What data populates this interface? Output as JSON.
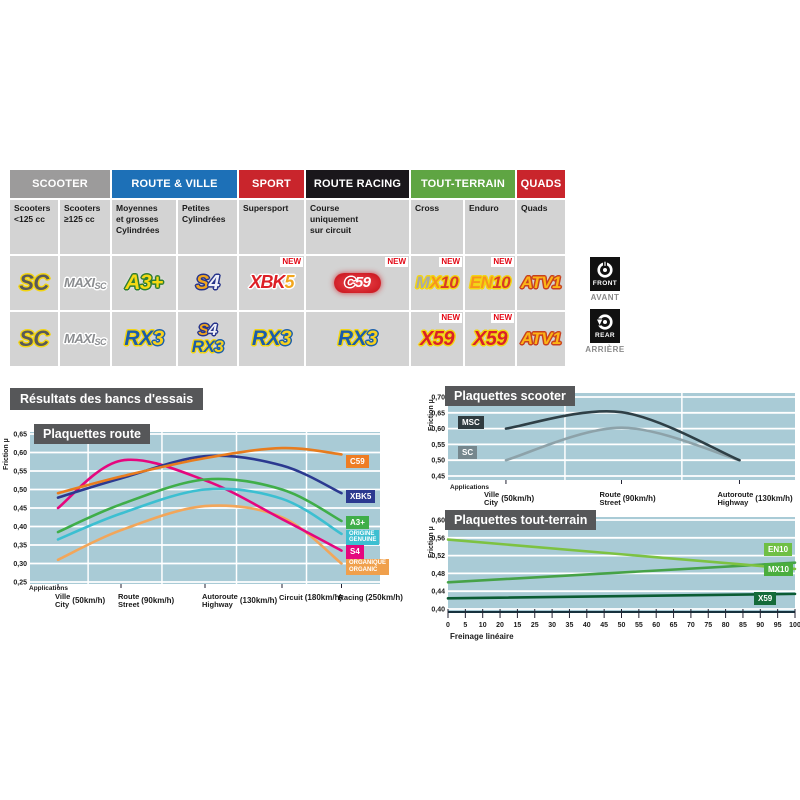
{
  "heading": "Résultats des bancs d'essais",
  "axle": {
    "front": {
      "label_en": "FRONT",
      "label_fr": "AVANT"
    },
    "rear": {
      "label_en": "REAR",
      "label_fr": "ARRIÈRE"
    }
  },
  "table": {
    "new_label": "NEW",
    "groups": [
      {
        "label": "SCOOTER",
        "color": "#9c9b9b",
        "span": 2
      },
      {
        "label": "ROUTE & VILLE",
        "color": "#1d70b7",
        "span": 2
      },
      {
        "label": "SPORT",
        "color": "#c9252c",
        "span": 1
      },
      {
        "label": "ROUTE RACING",
        "color": "#1a171b",
        "span": 1
      },
      {
        "label": "TOUT-TERRAIN",
        "color": "#5fa543",
        "span": 2
      },
      {
        "label": "QUADS",
        "color": "#c9252c",
        "span": 1
      }
    ],
    "columns": [
      {
        "lines": [
          "Scooters",
          "<125 cc"
        ]
      },
      {
        "lines": [
          "Scooters",
          "≥125 cc"
        ]
      },
      {
        "lines": [
          "Moyennes",
          "et grosses",
          "Cylindrées"
        ]
      },
      {
        "lines": [
          "Petites",
          "Cylindrées"
        ]
      },
      {
        "lines": [
          "Supersport"
        ]
      },
      {
        "lines": [
          "Course",
          "uniquement",
          "sur circuit"
        ]
      },
      {
        "lines": [
          "Cross"
        ]
      },
      {
        "lines": [
          "Enduro"
        ]
      },
      {
        "lines": [
          "Quads"
        ]
      }
    ],
    "rows": [
      {
        "side": "front",
        "cells": [
          {
            "badges": [
              {
                "name": "SC",
                "style": "sc",
                "parts": [
                  [
                    "SC",
                    "#58595b",
                    "y"
                  ]
                ]
              }
            ]
          },
          {
            "badges": [
              {
                "name": "MAXI-SC",
                "style": "maxi",
                "parts": [
                  [
                    "MAXI",
                    "#8b8d90",
                    "w"
                  ],
                  [
                    "SC",
                    "#8b8d90",
                    "w"
                  ]
                ]
              }
            ]
          },
          {
            "badges": [
              {
                "name": "A3+",
                "style": "a3",
                "parts": [
                  [
                    "A3+",
                    "#f5d913",
                    "g"
                  ]
                ]
              }
            ]
          },
          {
            "badges": [
              {
                "name": "S4",
                "style": "s4",
                "parts": [
                  [
                    "S",
                    "#f2a71d",
                    "n"
                  ],
                  [
                    "4",
                    "#eef0f8",
                    "n"
                  ]
                ]
              }
            ]
          },
          {
            "new": true,
            "badges": [
              {
                "name": "XBK5",
                "style": "xbk5",
                "parts": [
                  [
                    "XBK",
                    "#dd1f26",
                    "w"
                  ],
                  [
                    "5",
                    "#f2a71d",
                    "w"
                  ]
                ]
              }
            ]
          },
          {
            "new": true,
            "badges": [
              {
                "name": "C59",
                "style": "c59",
                "parts": [
                  [
                    "C",
                    "#cf1e26",
                    "w"
                  ],
                  [
                    "59",
                    "#ffffff",
                    ""
                  ]
                ]
              }
            ]
          },
          {
            "new": true,
            "badges": [
              {
                "name": "MX10",
                "style": "mx10",
                "parts": [
                  [
                    "M",
                    "#a7a9ac",
                    "y"
                  ],
                  [
                    "X",
                    "#f7941d",
                    "y"
                  ],
                  [
                    "10",
                    "#d93a26",
                    "y"
                  ]
                ]
              }
            ]
          },
          {
            "new": true,
            "badges": [
              {
                "name": "EN10",
                "style": "en10",
                "parts": [
                  [
                    "EN",
                    "#f7941d",
                    "y"
                  ],
                  [
                    "10",
                    "#d93a26",
                    "y"
                  ]
                ]
              }
            ]
          },
          {
            "badges": [
              {
                "name": "ATV1",
                "style": "atv1",
                "parts": [
                  [
                    "ATV1",
                    "#fcb415",
                    "o"
                  ]
                ]
              }
            ]
          }
        ]
      },
      {
        "side": "rear",
        "cells": [
          {
            "badges": [
              {
                "name": "SC",
                "style": "sc",
                "parts": [
                  [
                    "SC",
                    "#58595b",
                    "y"
                  ]
                ]
              }
            ]
          },
          {
            "badges": [
              {
                "name": "MAXI-SC",
                "style": "maxi",
                "parts": [
                  [
                    "MAXI",
                    "#8b8d90",
                    "w"
                  ],
                  [
                    "SC",
                    "#8b8d90",
                    "w"
                  ]
                ]
              }
            ]
          },
          {
            "badges": [
              {
                "name": "RX3",
                "style": "rx3",
                "parts": [
                  [
                    "RX",
                    "#1c5caa",
                    "y"
                  ],
                  [
                    "3",
                    "#f8d11e",
                    "b"
                  ]
                ]
              }
            ]
          },
          {
            "badges": [
              {
                "name": "S4",
                "style": "s4s",
                "parts": [
                  [
                    "S",
                    "#f2a71d",
                    "n"
                  ],
                  [
                    "4",
                    "#eef0f8",
                    "n"
                  ]
                ]
              },
              {
                "name": "RX3",
                "style": "rx3s",
                "parts": [
                  [
                    "RX",
                    "#1c5caa",
                    "y"
                  ],
                  [
                    "3",
                    "#f8d11e",
                    "b"
                  ]
                ]
              }
            ]
          },
          {
            "badges": [
              {
                "name": "RX3",
                "style": "rx3",
                "parts": [
                  [
                    "RX",
                    "#1c5caa",
                    "y"
                  ],
                  [
                    "3",
                    "#f8d11e",
                    "b"
                  ]
                ]
              }
            ]
          },
          {
            "badges": [
              {
                "name": "RX3",
                "style": "rx3",
                "parts": [
                  [
                    "RX",
                    "#1c5caa",
                    "y"
                  ],
                  [
                    "3",
                    "#f8d11e",
                    "b"
                  ]
                ]
              }
            ]
          },
          {
            "new": true,
            "badges": [
              {
                "name": "X59",
                "style": "x59",
                "parts": [
                  [
                    "X59",
                    "#da2128",
                    "y"
                  ]
                ]
              }
            ]
          },
          {
            "new": true,
            "badges": [
              {
                "name": "X59",
                "style": "x59",
                "parts": [
                  [
                    "X59",
                    "#da2128",
                    "y"
                  ]
                ]
              }
            ]
          },
          {
            "badges": [
              {
                "name": "ATV1",
                "style": "atv1",
                "parts": [
                  [
                    "ATV1",
                    "#fcb415",
                    "o"
                  ]
                ]
              }
            ]
          }
        ]
      }
    ]
  },
  "chart_data": [
    {
      "id": "route",
      "type": "line",
      "title": "Plaquettes route",
      "ylabel": "Friction µ",
      "caption": "Applications",
      "ylim": [
        0.25,
        0.65
      ],
      "ytick_step": 0.05,
      "plot_bg": "#a9cbd6",
      "x_categories": [
        {
          "fr": "Ville",
          "en": "City",
          "speed": "(50km/h)"
        },
        {
          "fr": "Route",
          "en": "Street",
          "speed": "(90km/h)"
        },
        {
          "fr": "Autoroute",
          "en": "Highway",
          "speed": "(130km/h)"
        },
        {
          "fr": "Circuit",
          "speed": "(180km/h)"
        },
        {
          "fr": "Racing",
          "speed": "(250km/h)"
        }
      ],
      "series": [
        {
          "name": "C59",
          "color": "#e87c1e",
          "label_lines": [
            "C59"
          ],
          "label_bg": "#ee7d23",
          "label_y": 0.575,
          "values": [
            0.49,
            0.535,
            0.585,
            0.612,
            0.595
          ]
        },
        {
          "name": "XBK5",
          "color": "#2b3990",
          "label_lines": [
            "XBK5"
          ],
          "label_bg": "#2b3990",
          "label_y": 0.48,
          "values": [
            0.478,
            0.53,
            0.59,
            0.565,
            0.49
          ]
        },
        {
          "name": "A3+",
          "color": "#3fae49",
          "label_lines": [
            "A3+"
          ],
          "label_bg": "#3fae49",
          "label_y": 0.41,
          "values": [
            0.385,
            0.46,
            0.527,
            0.5,
            0.415
          ]
        },
        {
          "name": "ORIGINE / GENUINE",
          "color": "#3cbfd1",
          "label_lines": [
            "ORIGINE",
            "GENUINE"
          ],
          "label_bg": "#3cbfd1",
          "label_y": 0.37,
          "values": [
            0.365,
            0.435,
            0.5,
            0.475,
            0.38
          ]
        },
        {
          "name": "S4",
          "color": "#e5067e",
          "label_lines": [
            "S4"
          ],
          "label_bg": "#e5067e",
          "label_y": 0.33,
          "values": [
            0.45,
            0.578,
            0.525,
            0.42,
            0.335
          ]
        },
        {
          "name": "ORGANIQUE / ORGANIC",
          "color": "#f2a65a",
          "label_lines": [
            "ORGANIQUE",
            "ORGANIC"
          ],
          "label_bg": "#f0a04c",
          "label_y": 0.29,
          "values": [
            0.31,
            0.39,
            0.455,
            0.425,
            0.3
          ]
        }
      ]
    },
    {
      "id": "scooter",
      "type": "line",
      "title": "Plaquettes scooter",
      "ylabel": "Friction µ",
      "caption": "Applications",
      "ylim": [
        0.45,
        0.7
      ],
      "ytick_step": 0.05,
      "plot_bg": "#a9cbd6",
      "x_categories": [
        {
          "fr": "Ville",
          "en": "City",
          "speed": "(50km/h)"
        },
        {
          "fr": "Route",
          "en": "Street",
          "speed": "(90km/h)"
        },
        {
          "fr": "Autoroute",
          "en": "Highway",
          "speed": "(130km/h)"
        }
      ],
      "series": [
        {
          "name": "MSC",
          "color": "#2e3f46",
          "label_lines": [
            "MSC"
          ],
          "label_bg": "#2f3b3f",
          "label_y": 0.617,
          "values": [
            0.6,
            0.652,
            0.5
          ]
        },
        {
          "name": "SC",
          "color": "#8da2a9",
          "label_lines": [
            "SC"
          ],
          "label_bg": "#75878e",
          "label_y": 0.523,
          "values": [
            0.5,
            0.603,
            0.5
          ]
        }
      ]
    },
    {
      "id": "tt",
      "type": "line",
      "title": "Plaquettes tout-terrain",
      "ylabel": "Friction µ",
      "xlabel": "Freinage linéaire",
      "ylim": [
        0.4,
        0.6
      ],
      "ytick_step": 0.04,
      "plot_bg": "#a9cbd6",
      "xticks": [
        "0",
        "5",
        "10",
        "20",
        "15",
        "25",
        "30",
        "35",
        "40",
        "45",
        "50",
        "55",
        "60",
        "65",
        "70",
        "75",
        "80",
        "85",
        "90",
        "95",
        "100"
      ],
      "series": [
        {
          "name": "EN10",
          "color": "#7dc242",
          "label_lines": [
            "EN10"
          ],
          "label_bg": "#6fbf44",
          "label_y": 0.532,
          "values": [
            0.556,
            0.49
          ]
        },
        {
          "name": "MX10",
          "color": "#46a247",
          "label_lines": [
            "MX10"
          ],
          "label_bg": "#4aad3e",
          "label_y": 0.487,
          "values": [
            0.46,
            0.504
          ]
        },
        {
          "name": "X59",
          "color": "#0b5b33",
          "label_lines": [
            "X59"
          ],
          "label_bg": "#156b39",
          "label_y": 0.423,
          "label_dx": -10,
          "values": [
            0.424,
            0.434
          ]
        }
      ]
    }
  ]
}
